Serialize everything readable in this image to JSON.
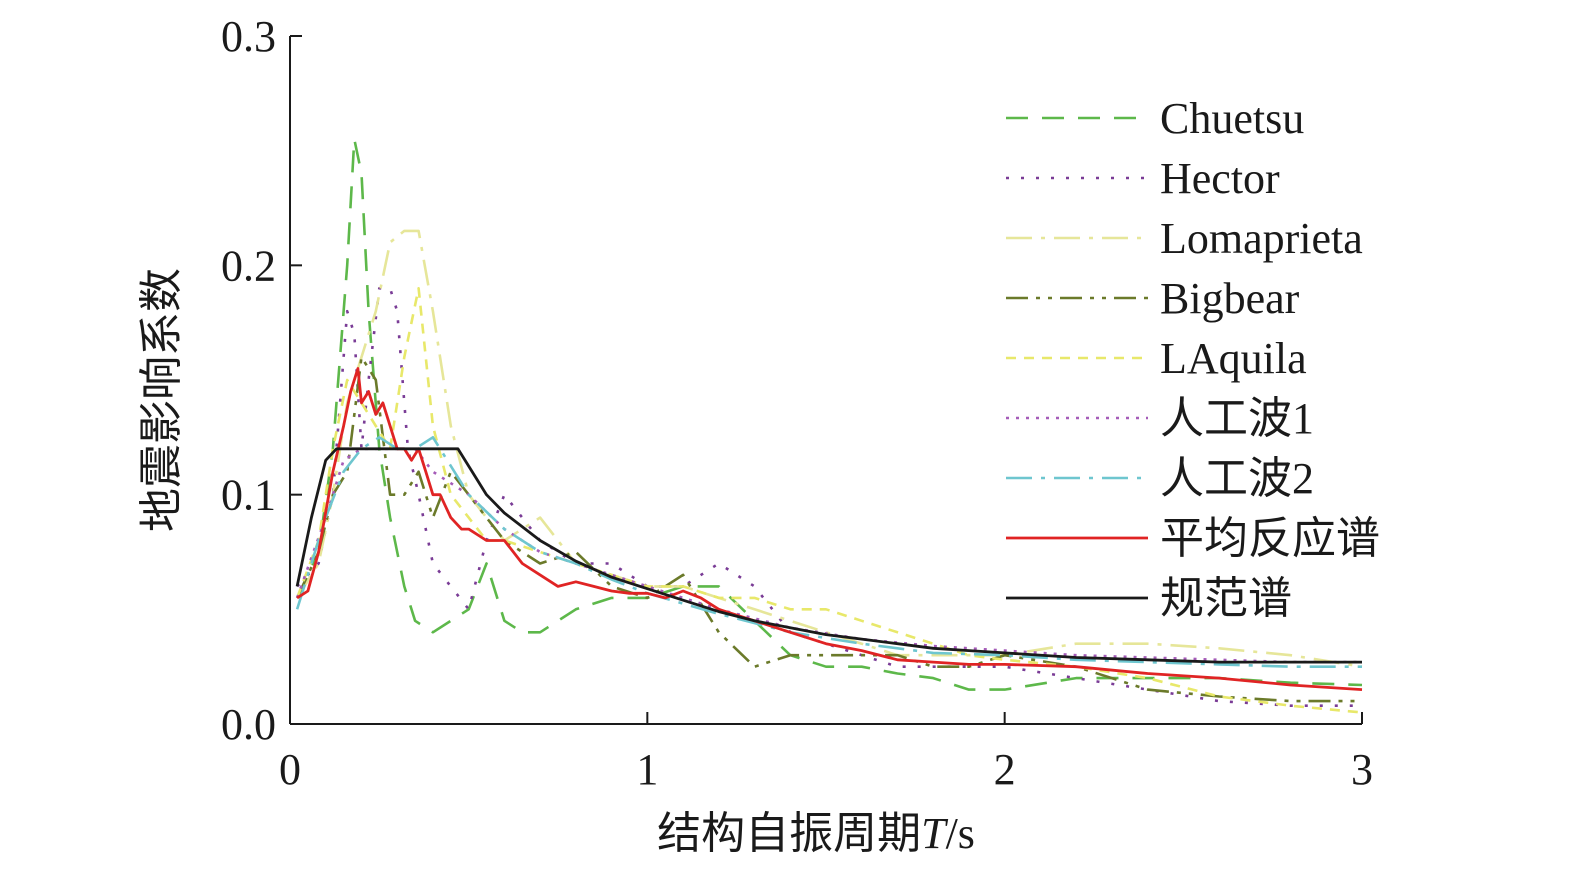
{
  "chart_data": {
    "type": "line",
    "title": "",
    "xlabel_main": "结构自振周期",
    "xlabel_var": "T",
    "xlabel_unit": "/s",
    "ylabel": "地震影响系数",
    "xlim": [
      0,
      3
    ],
    "ylim": [
      0,
      0.3
    ],
    "xticks": [
      0,
      1,
      2,
      3
    ],
    "xtick_labels": [
      "0",
      "1",
      "2",
      "3"
    ],
    "yticks": [
      0,
      0.1,
      0.2,
      0.3
    ],
    "ytick_labels": [
      "0.0",
      "0.1",
      "0.2",
      "0.3"
    ],
    "grid": false,
    "legend_position": "top-right",
    "series": [
      {
        "name": "Chuetsu",
        "color": "#5db84a",
        "dash": "dashed",
        "x": [
          0.02,
          0.08,
          0.12,
          0.16,
          0.18,
          0.2,
          0.22,
          0.25,
          0.28,
          0.32,
          0.35,
          0.4,
          0.45,
          0.5,
          0.55,
          0.6,
          0.65,
          0.7,
          0.75,
          0.8,
          0.9,
          1.0,
          1.1,
          1.2,
          1.3,
          1.4,
          1.5,
          1.6,
          1.7,
          1.8,
          1.9,
          2.0,
          2.2,
          2.4,
          2.6,
          2.8,
          3.0
        ],
        "y": [
          0.055,
          0.075,
          0.12,
          0.2,
          0.255,
          0.24,
          0.18,
          0.12,
          0.09,
          0.06,
          0.045,
          0.04,
          0.045,
          0.05,
          0.07,
          0.045,
          0.04,
          0.04,
          0.045,
          0.05,
          0.055,
          0.055,
          0.06,
          0.06,
          0.045,
          0.03,
          0.025,
          0.025,
          0.022,
          0.02,
          0.015,
          0.015,
          0.02,
          0.02,
          0.02,
          0.018,
          0.017
        ]
      },
      {
        "name": "Hector",
        "color": "#7a3c96",
        "dash": "dotted",
        "x": [
          0.02,
          0.08,
          0.12,
          0.16,
          0.18,
          0.2,
          0.22,
          0.25,
          0.28,
          0.3,
          0.33,
          0.36,
          0.4,
          0.45,
          0.5,
          0.55,
          0.6,
          0.7,
          0.8,
          0.9,
          1.0,
          1.1,
          1.2,
          1.3,
          1.4,
          1.5,
          1.6,
          1.7,
          1.8,
          1.9,
          2.0,
          2.2,
          2.4,
          2.6,
          2.8,
          3.0
        ],
        "y": [
          0.06,
          0.07,
          0.1,
          0.18,
          0.17,
          0.12,
          0.15,
          0.19,
          0.19,
          0.18,
          0.12,
          0.1,
          0.07,
          0.06,
          0.05,
          0.08,
          0.1,
          0.08,
          0.07,
          0.07,
          0.06,
          0.06,
          0.07,
          0.06,
          0.04,
          0.035,
          0.03,
          0.025,
          0.025,
          0.025,
          0.025,
          0.02,
          0.015,
          0.01,
          0.008,
          0.008
        ]
      },
      {
        "name": "Lomaprieta",
        "color": "#e6e699",
        "dash": "dashdot",
        "x": [
          0.02,
          0.08,
          0.12,
          0.16,
          0.2,
          0.24,
          0.28,
          0.32,
          0.36,
          0.4,
          0.45,
          0.5,
          0.55,
          0.6,
          0.7,
          0.8,
          0.9,
          1.0,
          1.1,
          1.2,
          1.3,
          1.4,
          1.5,
          1.6,
          1.7,
          1.8,
          1.9,
          2.0,
          2.2,
          2.4,
          2.6,
          2.8,
          3.0
        ],
        "y": [
          0.055,
          0.07,
          0.1,
          0.14,
          0.16,
          0.18,
          0.21,
          0.215,
          0.215,
          0.18,
          0.13,
          0.1,
          0.09,
          0.08,
          0.09,
          0.07,
          0.065,
          0.06,
          0.06,
          0.055,
          0.05,
          0.045,
          0.04,
          0.035,
          0.03,
          0.03,
          0.03,
          0.03,
          0.035,
          0.035,
          0.033,
          0.03,
          0.025
        ]
      },
      {
        "name": "Bigbear",
        "color": "#6b7a2a",
        "dash": "dashdotdot",
        "x": [
          0.02,
          0.08,
          0.12,
          0.16,
          0.2,
          0.24,
          0.28,
          0.32,
          0.36,
          0.4,
          0.45,
          0.5,
          0.55,
          0.6,
          0.7,
          0.8,
          0.9,
          1.0,
          1.1,
          1.2,
          1.3,
          1.4,
          1.5,
          1.6,
          1.7,
          1.8,
          1.9,
          2.0,
          2.2,
          2.4,
          2.6,
          2.8,
          3.0
        ],
        "y": [
          0.055,
          0.075,
          0.1,
          0.11,
          0.16,
          0.15,
          0.1,
          0.1,
          0.11,
          0.09,
          0.11,
          0.1,
          0.09,
          0.08,
          0.07,
          0.075,
          0.06,
          0.055,
          0.065,
          0.04,
          0.025,
          0.03,
          0.03,
          0.03,
          0.03,
          0.025,
          0.025,
          0.03,
          0.025,
          0.015,
          0.012,
          0.01,
          0.01
        ]
      },
      {
        "name": "LAquila",
        "color": "#e8e86a",
        "dash": "shortdash",
        "x": [
          0.02,
          0.08,
          0.12,
          0.16,
          0.2,
          0.24,
          0.28,
          0.32,
          0.36,
          0.4,
          0.45,
          0.5,
          0.55,
          0.6,
          0.7,
          0.8,
          0.9,
          1.0,
          1.1,
          1.2,
          1.3,
          1.4,
          1.5,
          1.6,
          1.7,
          1.8,
          1.9,
          2.0,
          2.2,
          2.4,
          2.6,
          2.8,
          3.0
        ],
        "y": [
          0.055,
          0.08,
          0.12,
          0.15,
          0.14,
          0.13,
          0.12,
          0.16,
          0.19,
          0.13,
          0.1,
          0.09,
          0.08,
          0.08,
          0.075,
          0.07,
          0.065,
          0.06,
          0.06,
          0.055,
          0.055,
          0.05,
          0.05,
          0.045,
          0.04,
          0.035,
          0.03,
          0.028,
          0.025,
          0.02,
          0.012,
          0.008,
          0.005
        ]
      },
      {
        "name": "人工波1",
        "color": "#a55cb8",
        "dash": "finedot",
        "x": [
          0.02,
          0.1,
          0.15,
          0.2,
          0.25,
          0.3,
          0.35,
          0.4,
          0.5,
          0.6,
          0.7,
          0.8,
          0.9,
          1.0,
          1.2,
          1.4,
          1.6,
          1.8,
          2.0,
          2.2,
          2.4,
          2.6,
          2.8,
          3.0
        ],
        "y": [
          0.055,
          0.09,
          0.115,
          0.12,
          0.12,
          0.12,
          0.12,
          0.11,
          0.1,
          0.085,
          0.075,
          0.07,
          0.065,
          0.06,
          0.05,
          0.042,
          0.037,
          0.034,
          0.032,
          0.03,
          0.029,
          0.028,
          0.027,
          0.027
        ]
      },
      {
        "name": "人工波2",
        "color": "#6ec6cf",
        "dash": "dashdot",
        "x": [
          0.02,
          0.1,
          0.15,
          0.2,
          0.25,
          0.3,
          0.35,
          0.4,
          0.5,
          0.6,
          0.7,
          0.8,
          0.9,
          1.0,
          1.2,
          1.4,
          1.6,
          1.8,
          2.0,
          2.2,
          2.4,
          2.6,
          2.8,
          3.0
        ],
        "y": [
          0.05,
          0.09,
          0.11,
          0.12,
          0.125,
          0.12,
          0.12,
          0.125,
          0.1,
          0.085,
          0.075,
          0.07,
          0.063,
          0.057,
          0.048,
          0.04,
          0.035,
          0.031,
          0.03,
          0.028,
          0.027,
          0.026,
          0.025,
          0.025
        ]
      },
      {
        "name": "平均反应谱",
        "color": "#e02424",
        "dash": "solid",
        "x": [
          0.02,
          0.05,
          0.08,
          0.12,
          0.15,
          0.17,
          0.19,
          0.2,
          0.22,
          0.24,
          0.26,
          0.28,
          0.3,
          0.32,
          0.34,
          0.36,
          0.38,
          0.4,
          0.42,
          0.45,
          0.48,
          0.5,
          0.55,
          0.6,
          0.65,
          0.7,
          0.75,
          0.8,
          0.85,
          0.9,
          0.95,
          1.0,
          1.05,
          1.1,
          1.15,
          1.2,
          1.3,
          1.4,
          1.5,
          1.6,
          1.7,
          1.8,
          1.9,
          2.0,
          2.2,
          2.4,
          2.6,
          2.8,
          3.0
        ],
        "y": [
          0.055,
          0.058,
          0.075,
          0.11,
          0.13,
          0.145,
          0.155,
          0.14,
          0.145,
          0.135,
          0.14,
          0.13,
          0.12,
          0.12,
          0.115,
          0.12,
          0.11,
          0.1,
          0.1,
          0.09,
          0.085,
          0.085,
          0.08,
          0.08,
          0.07,
          0.065,
          0.06,
          0.062,
          0.06,
          0.058,
          0.057,
          0.057,
          0.055,
          0.058,
          0.055,
          0.05,
          0.045,
          0.04,
          0.035,
          0.032,
          0.028,
          0.027,
          0.026,
          0.026,
          0.025,
          0.022,
          0.02,
          0.017,
          0.015
        ]
      },
      {
        "name": "规范谱",
        "color": "#1a1a1a",
        "dash": "solid",
        "x": [
          0.02,
          0.06,
          0.1,
          0.13,
          0.2,
          0.3,
          0.4,
          0.47,
          0.55,
          0.6,
          0.7,
          0.8,
          0.9,
          1.0,
          1.1,
          1.2,
          1.3,
          1.4,
          1.5,
          1.6,
          1.7,
          1.8,
          1.9,
          2.0,
          2.2,
          2.4,
          2.6,
          2.8,
          3.0
        ],
        "y": [
          0.06,
          0.09,
          0.115,
          0.12,
          0.12,
          0.12,
          0.12,
          0.12,
          0.1,
          0.092,
          0.08,
          0.071,
          0.064,
          0.059,
          0.054,
          0.049,
          0.045,
          0.042,
          0.039,
          0.037,
          0.035,
          0.033,
          0.032,
          0.031,
          0.029,
          0.028,
          0.027,
          0.027,
          0.027
        ]
      }
    ]
  }
}
